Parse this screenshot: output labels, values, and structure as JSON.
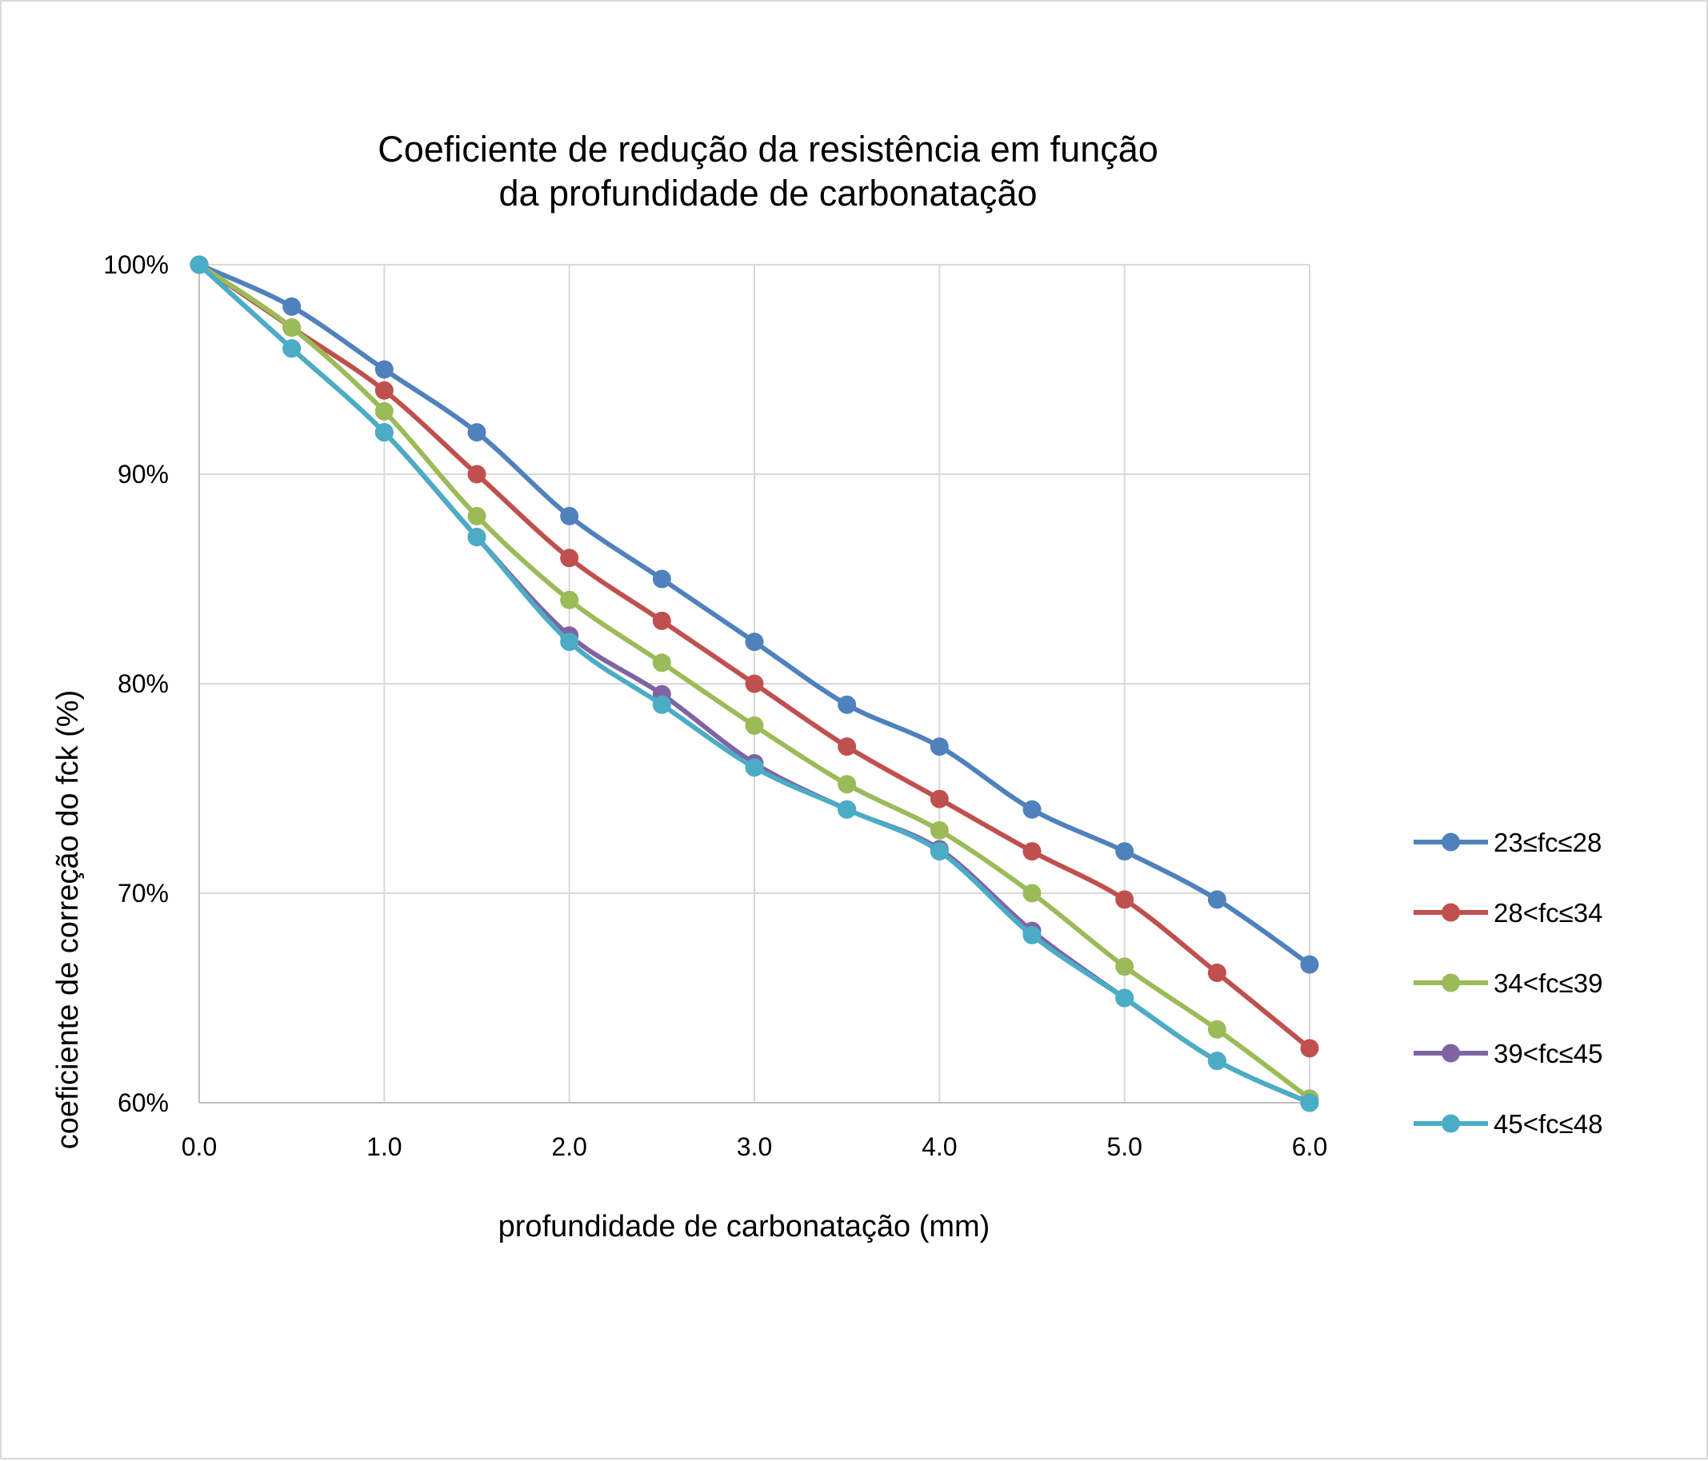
{
  "chart_data": {
    "type": "line",
    "title_line1": "Coeficiente de redução da resistência em função",
    "title_line2": "da profundidade de carbonatação",
    "xlabel": "profundidade de carbonatação (mm)",
    "ylabel": "coeficiente de correção do fck (%)",
    "x": [
      0.0,
      0.5,
      1.0,
      1.5,
      2.0,
      2.5,
      3.0,
      3.5,
      4.0,
      4.5,
      5.0,
      5.5,
      6.0
    ],
    "xlim": [
      0,
      6
    ],
    "ylim": [
      60,
      100
    ],
    "x_ticks": [
      {
        "value": 0,
        "label": "0.0"
      },
      {
        "value": 1,
        "label": "1.0"
      },
      {
        "value": 2,
        "label": "2.0"
      },
      {
        "value": 3,
        "label": "3.0"
      },
      {
        "value": 4,
        "label": "4.0"
      },
      {
        "value": 5,
        "label": "5.0"
      },
      {
        "value": 6,
        "label": "6.0"
      }
    ],
    "y_ticks": [
      {
        "value": 100,
        "label": "100%"
      },
      {
        "value": 90,
        "label": "90%"
      },
      {
        "value": 80,
        "label": "80%"
      },
      {
        "value": 70,
        "label": "70%"
      },
      {
        "value": 60,
        "label": "60%"
      }
    ],
    "grid": true,
    "legend_position": "right",
    "series": [
      {
        "name": "23≤fc≤28",
        "color": "#4f81bd",
        "values": [
          100,
          98,
          95,
          92,
          88,
          85,
          82,
          79,
          77,
          74,
          72,
          69.7,
          66.6
        ]
      },
      {
        "name": "28<fc≤34",
        "color": "#c0504d",
        "values": [
          100,
          97,
          94,
          90,
          86,
          83,
          80,
          77,
          74.5,
          72,
          69.7,
          66.2,
          62.6
        ]
      },
      {
        "name": "34<fc≤39",
        "color": "#9bbb59",
        "values": [
          100,
          97,
          93,
          88,
          84,
          81,
          78,
          75.2,
          73,
          70,
          66.5,
          63.5,
          60.2
        ]
      },
      {
        "name": "39<fc≤45",
        "color": "#8064a2",
        "values": [
          100,
          96,
          92,
          87,
          82.3,
          79.5,
          76.2,
          74,
          72.1,
          68.2,
          65,
          62,
          60
        ]
      },
      {
        "name": "45<fc≤48",
        "color": "#4bacc6",
        "values": [
          100,
          96,
          92,
          87,
          82,
          79,
          76,
          74,
          72,
          68,
          65,
          62,
          60
        ]
      }
    ]
  }
}
